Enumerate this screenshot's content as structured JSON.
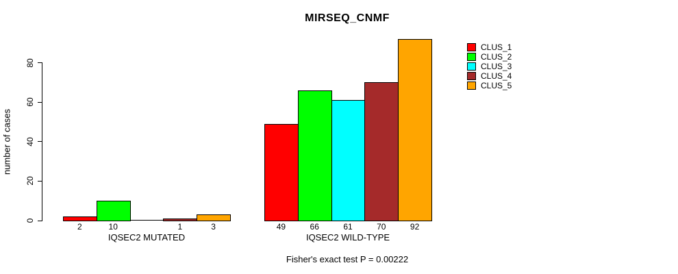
{
  "chart": {
    "title": "MIRSEQ_CNMF",
    "ylabel": "number of cases",
    "caption": "Fisher's exact test P = 0.00222"
  },
  "chart_data": {
    "type": "bar",
    "title": "MIRSEQ_CNMF",
    "xlabel": "",
    "ylabel": "number of cases",
    "categories": [
      "IQSEC2 MUTATED",
      "IQSEC2 WILD-TYPE"
    ],
    "series": [
      {
        "name": "CLUS_1",
        "color": "#ff0000",
        "values": [
          2,
          49
        ]
      },
      {
        "name": "CLUS_2",
        "color": "#00ff00",
        "values": [
          10,
          66
        ]
      },
      {
        "name": "CLUS_3",
        "color": "#00ffff",
        "values": [
          0,
          61
        ]
      },
      {
        "name": "CLUS_4",
        "color": "#a52a2a",
        "values": [
          1,
          70
        ]
      },
      {
        "name": "CLUS_5",
        "color": "#ffa500",
        "values": [
          3,
          92
        ]
      }
    ],
    "yticks": [
      0,
      20,
      40,
      60,
      80
    ],
    "ylim": [
      0,
      92
    ],
    "grid": false,
    "bars_outlined": true,
    "value_labels_shown": true,
    "hide_zero_value_labels": true,
    "legend_position": "top-right",
    "annotation": "Fisher's exact test P = 0.00222",
    "axis_color": "#000000",
    "text_color": "#000000",
    "background_color": "#ffffff"
  }
}
